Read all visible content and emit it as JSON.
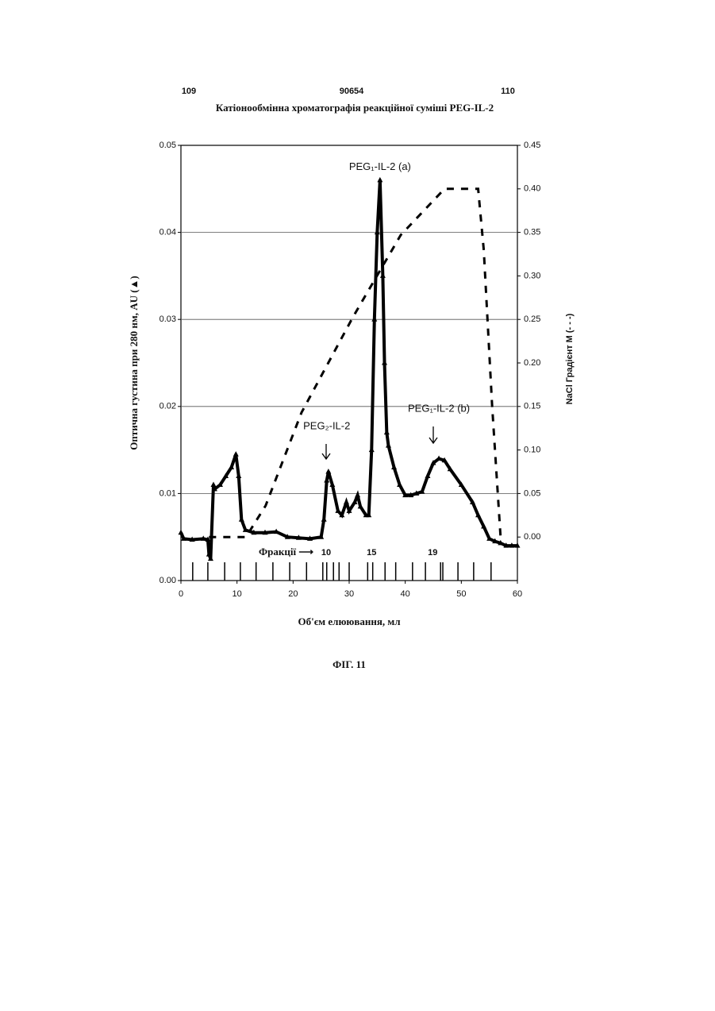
{
  "page": {
    "left_number": "109",
    "center_number": "90654",
    "right_number": "110",
    "figure": "ФІГ. 11"
  },
  "chart_data": {
    "type": "line",
    "title": "Катіонообмінна хроматографія реакційної суміші PEG-IL-2",
    "x_label": "Об'єм елюювання, мл",
    "y_label": "Оптична густина при 280 нм, AU (▲)",
    "y2_label": "NaCl Градієнт M (- - -)",
    "xlim": [
      0,
      60
    ],
    "xticks": [
      0,
      10,
      20,
      30,
      40,
      50,
      60
    ],
    "ylim": [
      0,
      0.05
    ],
    "yticks": [
      {
        "value": 0,
        "label": "0.00"
      },
      {
        "value": 0.01,
        "label": "0.01"
      },
      {
        "value": 0.02,
        "label": "0.02"
      },
      {
        "value": 0.03,
        "label": "0.03"
      },
      {
        "value": 0.04,
        "label": "0.04"
      },
      {
        "value": 0.05,
        "label": "0.05"
      }
    ],
    "y2lim": [
      -0.05,
      0.45
    ],
    "y2ticks": [
      {
        "value": 0,
        "label": "0.00"
      },
      0.05,
      {
        "value": 0.1,
        "label": "0.10"
      },
      0.15,
      {
        "value": 0.2,
        "label": "0.20"
      },
      0.25,
      {
        "value": 0.3,
        "label": "0.30"
      },
      0.35,
      {
        "value": 0.4,
        "label": "0.40"
      },
      0.45
    ],
    "grid": true,
    "series": [
      {
        "name": "AU",
        "color": "#000000",
        "marker": "triangle",
        "x": [
          0,
          0.5,
          2,
          4,
          4.8,
          5,
          5.3,
          5.8,
          6,
          7,
          8,
          9,
          9.8,
          10.3,
          10.8,
          11.5,
          13,
          15,
          17,
          19,
          21,
          23,
          25,
          25.5,
          26,
          26.3,
          27,
          28,
          28.7,
          29.5,
          30,
          31,
          31.5,
          32,
          33,
          33.5,
          34,
          34.5,
          35,
          35.5,
          36,
          36.3,
          36.7,
          37,
          38,
          39,
          40,
          41,
          42,
          43,
          44,
          45,
          46,
          47,
          48,
          50,
          52,
          53,
          54,
          55,
          56,
          57,
          58,
          59,
          60
        ],
        "values": [
          0.0055,
          0.0048,
          0.0047,
          0.0048,
          0.0047,
          0.003,
          0.0025,
          0.011,
          0.0105,
          0.011,
          0.012,
          0.013,
          0.0145,
          0.012,
          0.007,
          0.0058,
          0.0055,
          0.0055,
          0.0056,
          0.005,
          0.0049,
          0.0048,
          0.005,
          0.007,
          0.0115,
          0.0125,
          0.011,
          0.008,
          0.0075,
          0.009,
          0.008,
          0.009,
          0.0098,
          0.0085,
          0.0075,
          0.0075,
          0.015,
          0.03,
          0.04,
          0.046,
          0.035,
          0.025,
          0.017,
          0.0155,
          0.013,
          0.011,
          0.0098,
          0.0098,
          0.01,
          0.0102,
          0.012,
          0.0135,
          0.014,
          0.0138,
          0.0128,
          0.011,
          0.009,
          0.0075,
          0.0062,
          0.0048,
          0.0045,
          0.0043,
          0.004,
          0.004,
          0.004
        ]
      },
      {
        "name": "NaCl",
        "color": "#000000",
        "dashed": true,
        "axis": "y2",
        "x": [
          5,
          11.6,
          15.1,
          21.5,
          30.7,
          39.2,
          47,
          53,
          54,
          55.5,
          57
        ],
        "values": [
          0,
          0,
          0.036,
          0.143,
          0.253,
          0.347,
          0.4,
          0.4,
          0.33,
          0.15,
          0
        ]
      }
    ],
    "annotations": [
      {
        "text": "PEG₁-IL-2 (a)",
        "x": 35.5,
        "y": 0.0475
      },
      {
        "text": "PEG₂-IL-2",
        "x": 26,
        "y": 0.0177
      },
      {
        "text": "PEG₁-IL-2 (b)",
        "x": 46,
        "y": 0.0197
      }
    ],
    "fractions_label": "Фракції ⟶",
    "fraction_marks": [
      2.1,
      4.8,
      7.8,
      10.6,
      13.4,
      16.4,
      19.4,
      22.4,
      25.3,
      26.0,
      27.2,
      28.2,
      30.0,
      33.3,
      34.2,
      36.4,
      38.3,
      41.3,
      43.6,
      46.3,
      46.7,
      49.4,
      52.2,
      55.3
    ],
    "fraction_labels": [
      {
        "text": "10",
        "x": 25.9
      },
      {
        "text": "15",
        "x": 34
      },
      {
        "text": "19",
        "x": 44.9
      }
    ]
  }
}
